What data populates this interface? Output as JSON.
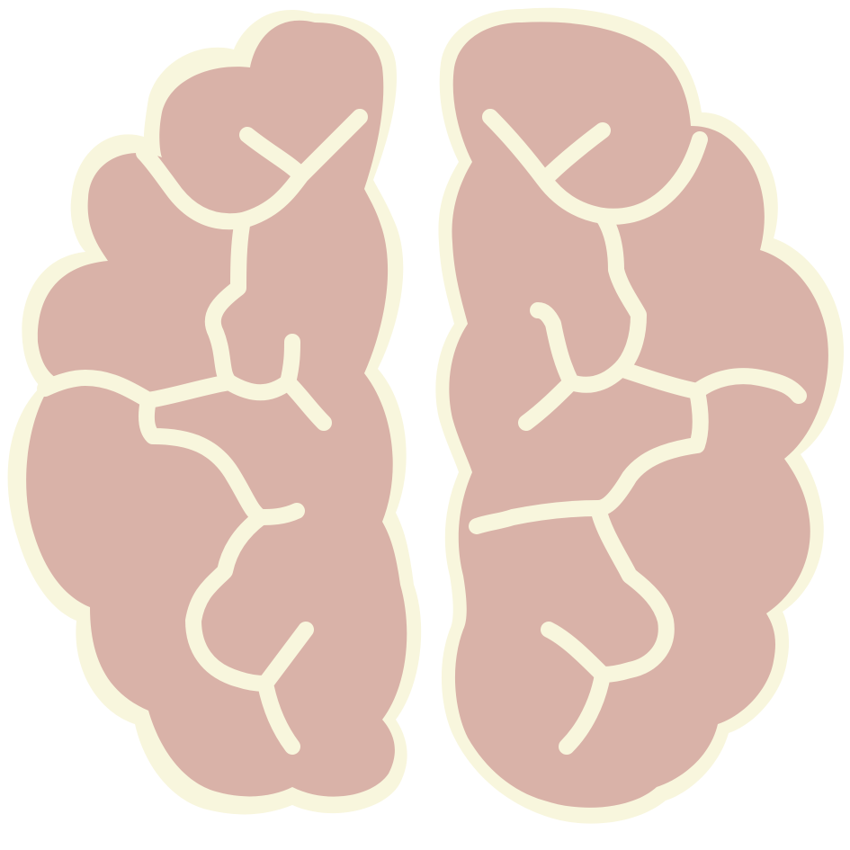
{
  "icon": {
    "name": "brain-icon",
    "colors": {
      "fill": "#d9b2a8",
      "outline": "#f8f6dd",
      "background": "#ffffff"
    }
  }
}
